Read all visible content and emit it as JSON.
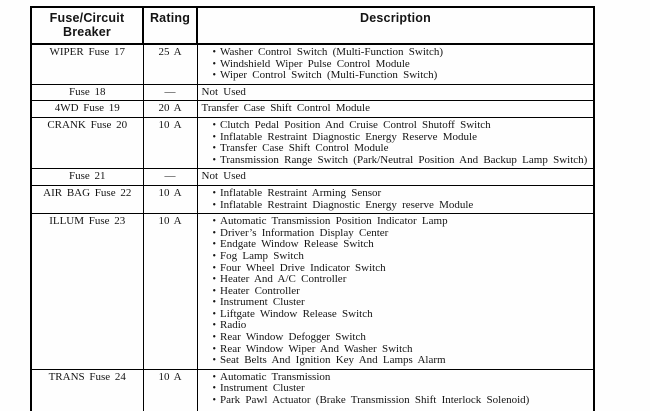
{
  "table": {
    "bullet": "•",
    "headers": {
      "col1_line1": "Fuse/Circuit",
      "col1_line2": "Breaker",
      "col2": "Rating",
      "col3": "Description"
    },
    "rows": [
      {
        "name": "WIPER Fuse 17",
        "rating": "25 A",
        "items": [
          "Washer Control Switch (Multi-Function Switch)",
          "Windshield Wiper Pulse Control Module",
          "Wiper Control Switch (Multi-Function Switch)"
        ]
      },
      {
        "name": "Fuse 18",
        "rating": "—",
        "plain": "Not Used"
      },
      {
        "name": "4WD Fuse 19",
        "rating": "20 A",
        "plain": "Transfer Case Shift Control Module"
      },
      {
        "name": "CRANK Fuse 20",
        "rating": "10 A",
        "items": [
          "Clutch Pedal Position And Cruise Control Shutoff Switch",
          "Inflatable Restraint Diagnostic Energy Reserve Module",
          "Transfer Case Shift Control Module",
          "Transmission Range Switch (Park/Neutral Position And Backup Lamp Switch)"
        ]
      },
      {
        "name": "Fuse 21",
        "rating": "—",
        "plain": "Not Used"
      },
      {
        "name": "AIR BAG Fuse 22",
        "rating": "10 A",
        "items": [
          "Inflatable Restraint Arming Sensor",
          "Inflatable Restraint Diagnostic Energy reserve Module"
        ]
      },
      {
        "name": "ILLUM Fuse 23",
        "rating": "10 A",
        "items": [
          "Automatic Transmission Position Indicator Lamp",
          "Driver’s Information Display Center",
          "Endgate Window Release Switch",
          "Fog Lamp Switch",
          "Four Wheel Drive Indicator Switch",
          "Heater And A/C Controller",
          "Heater Controller",
          "Instrument Cluster",
          "Liftgate Window Release Switch",
          "Radio",
          "Rear Window Defogger Switch",
          "Rear Window Wiper And Washer Switch",
          "Seat Belts And Ignition Key And Lamps Alarm"
        ]
      },
      {
        "name": "TRANS Fuse 24",
        "rating": "10 A",
        "items": [
          "Automatic Transmission",
          "Instrument Cluster",
          "Park Pawl Actuator (Brake Transmission Shift Interlock Solenoid)"
        ]
      }
    ]
  }
}
